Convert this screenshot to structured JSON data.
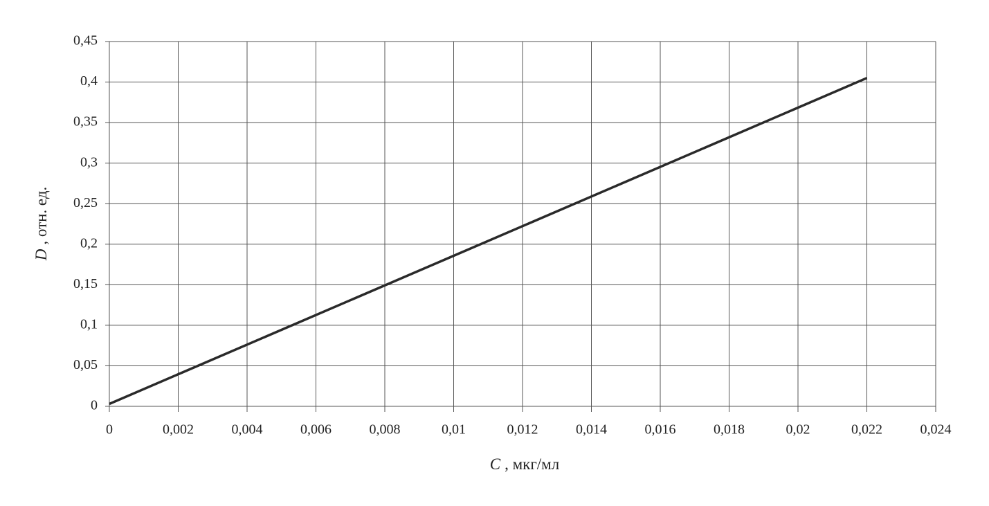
{
  "chart_data": {
    "type": "line",
    "xlabel": {
      "symbol": "C",
      "unit": ", мкг/мл"
    },
    "ylabel": {
      "symbol": "D",
      "unit": ", отн. ед."
    },
    "x": [
      0,
      0.022
    ],
    "series": [
      {
        "color": "#2a2a2a",
        "values": [
          0.003,
          0.405
        ]
      }
    ],
    "xlim": [
      0,
      0.024
    ],
    "ylim": [
      0,
      0.45
    ],
    "xticks": [
      0,
      {
        "value": 0.002,
        "label": "0,002"
      },
      {
        "value": 0.004,
        "label": "0,004"
      },
      {
        "value": 0.006,
        "label": "0,006"
      },
      {
        "value": 0.008,
        "label": "0,008"
      },
      {
        "value": 0.01,
        "label": "0,01"
      },
      {
        "value": 0.012,
        "label": "0,012"
      },
      {
        "value": 0.014,
        "label": "0,014"
      },
      {
        "value": 0.016,
        "label": "0,016"
      },
      {
        "value": 0.018,
        "label": "0,018"
      },
      {
        "value": 0.02,
        "label": "0,02"
      },
      {
        "value": 0.022,
        "label": "0,022"
      },
      {
        "value": 0.024,
        "label": "0,024"
      }
    ],
    "yticks": [
      0,
      {
        "value": 0.05,
        "label": "0,05"
      },
      {
        "value": 0.1,
        "label": "0,1"
      },
      {
        "value": 0.15,
        "label": "0,15"
      },
      {
        "value": 0.2,
        "label": "0,2"
      },
      {
        "value": 0.25,
        "label": "0,25"
      },
      {
        "value": 0.3,
        "label": "0,3"
      },
      {
        "value": 0.35,
        "label": "0,35"
      },
      {
        "value": 0.4,
        "label": "0,4"
      },
      {
        "value": 0.45,
        "label": "0,45"
      }
    ],
    "grid": true
  }
}
